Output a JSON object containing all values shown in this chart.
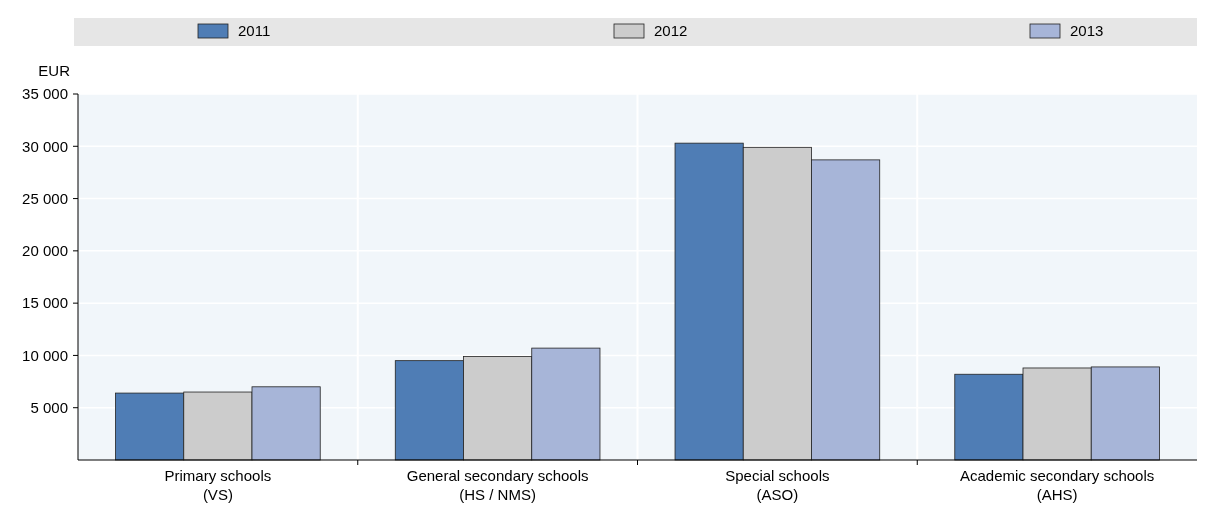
{
  "chart_data": {
    "type": "bar",
    "ylabel": "EUR",
    "categories": [
      "Primary schools (VS)",
      "General secondary schools (HS / NMS)",
      "Special schools (ASO)",
      "Academic secondary schools (AHS)"
    ],
    "series": [
      {
        "name": "2011",
        "color": "#4f7db5",
        "values": [
          6400,
          9500,
          30300,
          8200
        ]
      },
      {
        "name": "2012",
        "color": "#cccccc",
        "values": [
          6500,
          9900,
          29900,
          8800
        ]
      },
      {
        "name": "2013",
        "color": "#a7b5d8",
        "values": [
          7000,
          10700,
          28700,
          8900
        ]
      }
    ],
    "ylim": [
      0,
      35000
    ],
    "yticks": [
      {
        "value": 5000,
        "label": "5 000"
      },
      {
        "value": 10000,
        "label": "10 000"
      },
      {
        "value": 15000,
        "label": "15 000"
      },
      {
        "value": 20000,
        "label": "20 000"
      },
      {
        "value": 25000,
        "label": "25 000"
      },
      {
        "value": 30000,
        "label": "30 000"
      },
      {
        "value": 35000,
        "label": "35 000"
      }
    ],
    "grid": "y",
    "legend": "top"
  }
}
